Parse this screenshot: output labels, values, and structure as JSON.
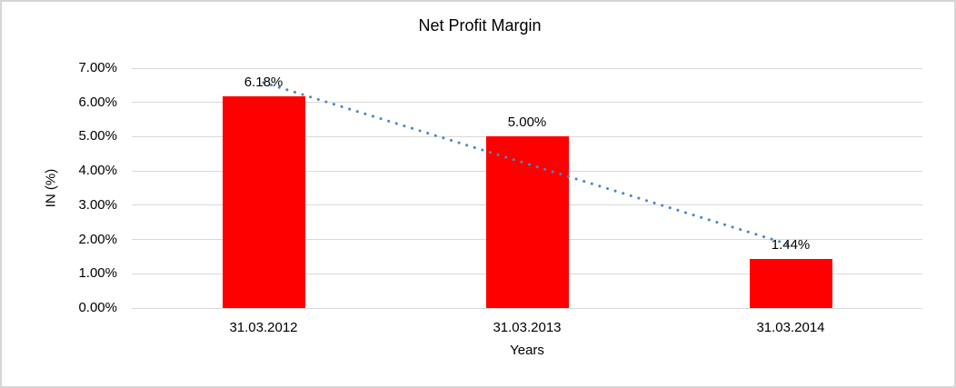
{
  "window": {
    "background": "#ffffff",
    "border_color": "#d6d6d6"
  },
  "chart_data": {
    "type": "bar",
    "title": "Net Profit Margin",
    "categories": [
      "31.03.2012",
      "31.03.2013",
      "31.03.2014"
    ],
    "values": [
      6.18,
      5.0,
      1.44
    ],
    "data_labels": [
      "6.18%",
      "5.00%",
      "1.44%"
    ],
    "xlabel": "Years",
    "ylabel": "IN (%)",
    "ylim": [
      0,
      7
    ],
    "ytick_labels": [
      "0.00%",
      "1.00%",
      "2.00%",
      "3.00%",
      "4.00%",
      "5.00%",
      "6.00%",
      "7.00%"
    ],
    "grid": true,
    "legend": "none",
    "bar_color": "#ff0000",
    "gridline_color": "#d9d9d9",
    "text_color": "#000000",
    "trendline": {
      "style": "dotted",
      "color": "#4a86c8",
      "start_value": 6.58,
      "end_value": 1.84
    }
  }
}
